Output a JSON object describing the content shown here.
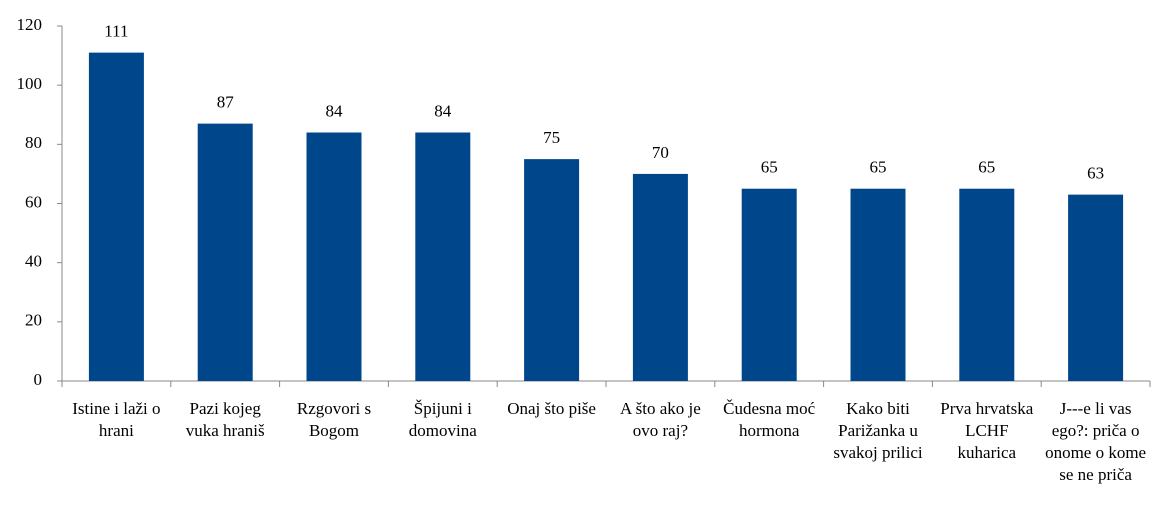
{
  "chart_data": {
    "type": "bar",
    "categories": [
      "Istine i laži o hrani",
      "Pazi kojeg vuka hraniš",
      "Rzgovori s Bogom",
      "Špijuni i domovina",
      "Onaj što piše",
      "A što ako je ovo raj?",
      "Čudesna moć hormona",
      "Kako biti Parižanka u svakoj prilici",
      "Prva hrvatska LCHF kuharica",
      "J---e li vas ego?: priča o onome o kome se ne priča"
    ],
    "values": [
      111,
      87,
      84,
      84,
      75,
      70,
      65,
      65,
      65,
      63
    ],
    "color": "#00468b",
    "ylim": [
      0,
      120
    ],
    "yticks": [
      0,
      20,
      40,
      60,
      80,
      100,
      120
    ],
    "grid": false
  }
}
